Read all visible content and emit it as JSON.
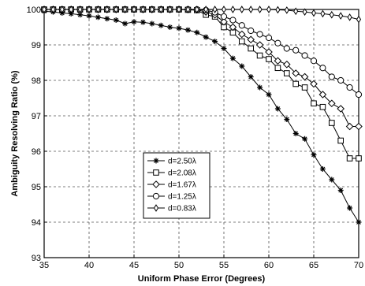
{
  "chart_data": {
    "type": "line",
    "title": "",
    "xlabel": "Uniform Phase Error (Degrees)",
    "ylabel": "Ambiguity Resolving Ratio (%)",
    "xlim": [
      35,
      70
    ],
    "ylim": [
      93,
      100
    ],
    "xticks": [
      "35",
      "40",
      "45",
      "50",
      "55",
      "60",
      "65",
      "70"
    ],
    "yticks": [
      "93",
      "94",
      "95",
      "96",
      "97",
      "98",
      "99",
      "100"
    ],
    "grid": true,
    "legend_position": "lower-left",
    "series": [
      {
        "name": "d=2.50λ",
        "marker": "star",
        "x": [
          35,
          36,
          37,
          38,
          39,
          40,
          41,
          42,
          43,
          44,
          45,
          46,
          47,
          48,
          49,
          50,
          51,
          52,
          53,
          54,
          55,
          56,
          57,
          58,
          59,
          60,
          61,
          62,
          63,
          64,
          65,
          66,
          67,
          68,
          69,
          70
        ],
        "y": [
          99.95,
          99.93,
          99.9,
          99.88,
          99.85,
          99.82,
          99.78,
          99.74,
          99.7,
          99.6,
          99.65,
          99.64,
          99.6,
          99.55,
          99.5,
          99.47,
          99.42,
          99.35,
          99.22,
          99.1,
          98.9,
          98.62,
          98.4,
          98.1,
          97.8,
          97.6,
          97.2,
          96.9,
          96.5,
          96.35,
          95.9,
          95.5,
          95.2,
          94.9,
          94.4,
          94.0
        ]
      },
      {
        "name": "d=2.08λ",
        "marker": "square",
        "x": [
          35,
          36,
          37,
          38,
          39,
          40,
          41,
          42,
          43,
          44,
          45,
          46,
          47,
          48,
          49,
          50,
          51,
          52,
          53,
          54,
          55,
          56,
          57,
          58,
          59,
          60,
          61,
          62,
          63,
          64,
          65,
          66,
          67,
          68,
          69,
          70
        ],
        "y": [
          100,
          100,
          100,
          100,
          100,
          100,
          100,
          100,
          100,
          100,
          100,
          100,
          100,
          100,
          100,
          100,
          99.99,
          99.98,
          99.85,
          99.8,
          99.5,
          99.35,
          99.1,
          98.9,
          98.7,
          98.6,
          98.35,
          98.2,
          97.9,
          97.8,
          97.35,
          97.25,
          96.8,
          96.3,
          95.8,
          95.8
        ]
      },
      {
        "name": "d=1.67λ",
        "marker": "diamond",
        "x": [
          35,
          36,
          37,
          38,
          39,
          40,
          41,
          42,
          43,
          44,
          45,
          46,
          47,
          48,
          49,
          50,
          51,
          52,
          53,
          54,
          55,
          56,
          57,
          58,
          59,
          60,
          61,
          62,
          63,
          64,
          65,
          66,
          67,
          68,
          69,
          70
        ],
        "y": [
          100,
          100,
          100,
          100,
          100,
          100,
          100,
          100,
          100,
          100,
          100,
          100,
          100,
          100,
          100,
          100,
          100,
          99.99,
          99.93,
          99.85,
          99.65,
          99.5,
          99.3,
          99.15,
          99.0,
          98.8,
          98.55,
          98.45,
          98.2,
          98.1,
          97.9,
          97.6,
          97.35,
          97.2,
          96.7,
          96.7
        ]
      },
      {
        "name": "d=1.25λ",
        "marker": "circle",
        "x": [
          35,
          36,
          37,
          38,
          39,
          40,
          41,
          42,
          43,
          44,
          45,
          46,
          47,
          48,
          49,
          50,
          51,
          52,
          53,
          54,
          55,
          56,
          57,
          58,
          59,
          60,
          61,
          62,
          63,
          64,
          65,
          66,
          67,
          68,
          69,
          70
        ],
        "y": [
          100,
          100,
          100,
          100,
          100,
          100,
          100,
          100,
          100,
          100,
          100,
          100,
          100,
          100,
          100,
          100,
          100,
          100,
          99.98,
          99.92,
          99.8,
          99.7,
          99.55,
          99.4,
          99.3,
          99.2,
          99.05,
          98.9,
          98.85,
          98.7,
          98.55,
          98.35,
          98.1,
          98.0,
          97.8,
          97.6
        ]
      },
      {
        "name": "d=0.83λ",
        "marker": "thin-diamond",
        "x": [
          35,
          36,
          37,
          38,
          39,
          40,
          41,
          42,
          43,
          44,
          45,
          46,
          47,
          48,
          49,
          50,
          51,
          52,
          53,
          54,
          55,
          56,
          57,
          58,
          59,
          60,
          61,
          62,
          63,
          64,
          65,
          66,
          67,
          68,
          69,
          70
        ],
        "y": [
          100,
          100,
          100,
          100,
          100,
          100,
          100,
          100,
          100,
          100,
          100,
          100,
          100,
          100,
          100,
          100,
          100,
          100,
          100,
          100,
          100,
          100,
          100,
          100,
          100,
          100,
          99.99,
          99.98,
          99.95,
          99.93,
          99.9,
          99.88,
          99.85,
          99.82,
          99.78,
          99.72
        ]
      }
    ]
  }
}
